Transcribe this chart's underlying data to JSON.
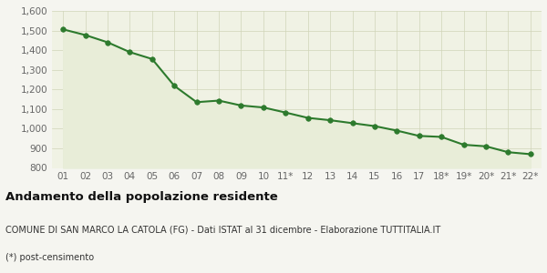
{
  "x_labels": [
    "01",
    "02",
    "03",
    "04",
    "05",
    "06",
    "07",
    "08",
    "09",
    "10",
    "11*",
    "12",
    "13",
    "14",
    "15",
    "16",
    "17",
    "18*",
    "19*",
    "20*",
    "21*",
    "22*"
  ],
  "y_values": [
    1506,
    1477,
    1440,
    1390,
    1355,
    1218,
    1135,
    1143,
    1118,
    1108,
    1082,
    1055,
    1043,
    1028,
    1013,
    990,
    963,
    958,
    918,
    910,
    880,
    870
  ],
  "line_color": "#2d7a2d",
  "fill_color": "#e8edd8",
  "marker_color": "#2d7a2d",
  "bg_color": "#f0f2e4",
  "grid_color": "#d0d4b8",
  "fig_bg_color": "#f5f5f0",
  "ylim_min": 800,
  "ylim_max": 1600,
  "yticks": [
    800,
    900,
    1000,
    1100,
    1200,
    1300,
    1400,
    1500,
    1600
  ],
  "title": "Andamento della popolazione residente",
  "subtitle": "COMUNE DI SAN MARCO LA CATOLA (FG) - Dati ISTAT al 31 dicembre - Elaborazione TUTTITALIA.IT",
  "footnote": "(*) post-censimento",
  "title_fontsize": 9.5,
  "subtitle_fontsize": 7.0,
  "footnote_fontsize": 7.0,
  "tick_fontsize": 7.5,
  "line_width": 1.5,
  "marker_size": 4.0
}
